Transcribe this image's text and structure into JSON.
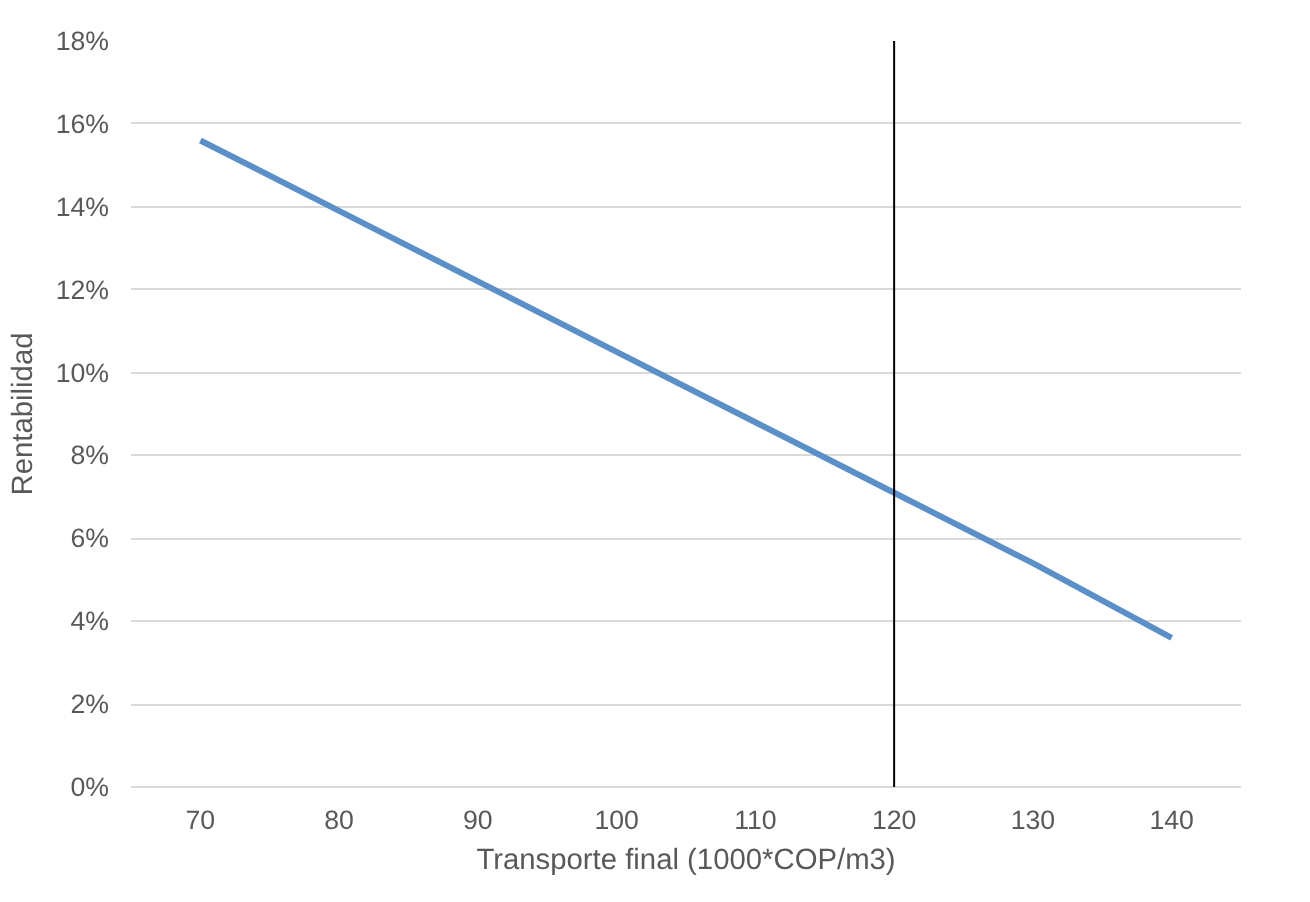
{
  "chart_data": {
    "type": "line",
    "xlabel": "Transporte final (1000*COP/m3)",
    "ylabel": "Rentabilidad",
    "categories": [
      "70",
      "80",
      "90",
      "100",
      "110",
      "120",
      "130",
      "140"
    ],
    "series": [
      {
        "color": "#5b8fc7",
        "values": [
          15.6,
          13.9,
          12.2,
          10.5,
          8.8,
          7.1,
          5.4,
          3.6
        ]
      }
    ],
    "ylim": [
      0,
      18
    ],
    "yticks": [
      {
        "value": 0,
        "label": "0%"
      },
      {
        "value": 2,
        "label": "2%"
      },
      {
        "value": 4,
        "label": "4%"
      },
      {
        "value": 6,
        "label": "6%"
      },
      {
        "value": 8,
        "label": "8%"
      },
      {
        "value": 10,
        "label": "10%"
      },
      {
        "value": 12,
        "label": "12%"
      },
      {
        "value": 14,
        "label": "14%"
      },
      {
        "value": 16,
        "label": "16%"
      },
      {
        "value": 18,
        "label": "18%"
      }
    ],
    "grid": "y",
    "line_style": "solid",
    "ref_lines": [
      {
        "axis": "x",
        "value": "120",
        "color": "#000000"
      }
    ]
  }
}
